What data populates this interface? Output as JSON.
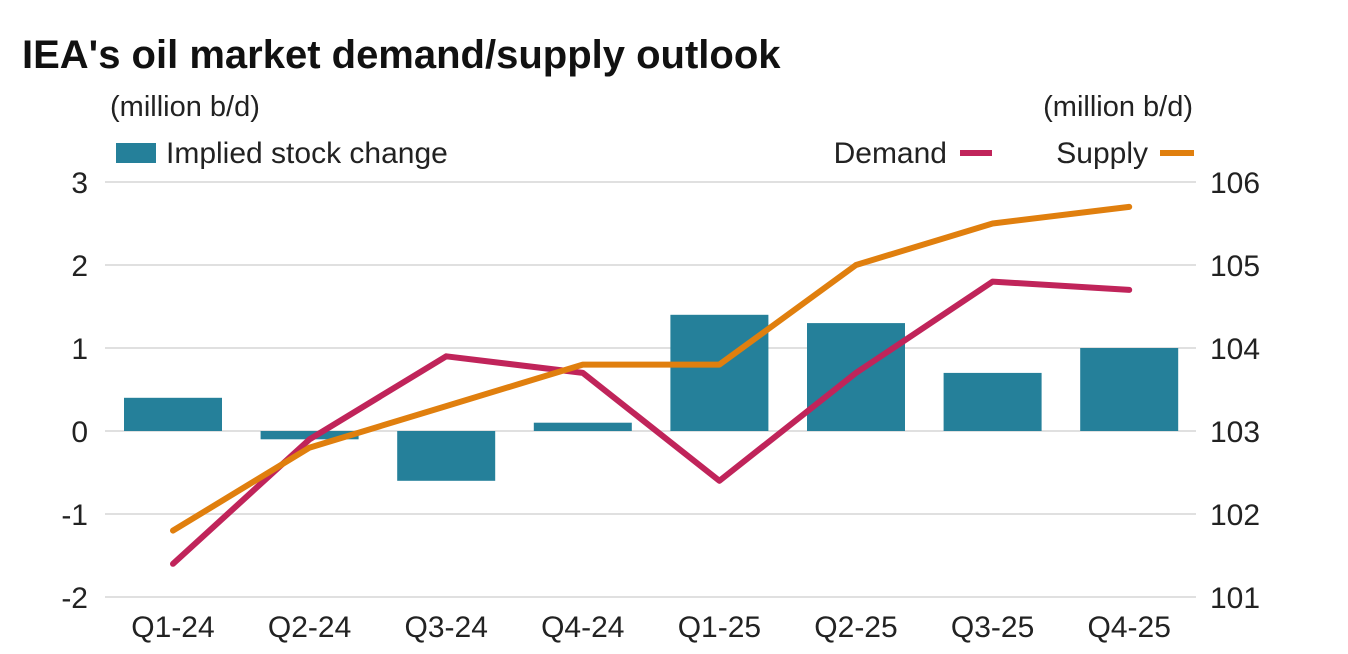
{
  "chart_data": {
    "type": "bar+line",
    "title": "IEA's oil market demand/supply outlook",
    "left_unit": "(million b/d)",
    "right_unit": "(million b/d)",
    "categories": [
      "Q1-24",
      "Q2-24",
      "Q3-24",
      "Q4-24",
      "Q1-25",
      "Q2-25",
      "Q3-25",
      "Q4-25"
    ],
    "left_axis": {
      "ylim": [
        -2,
        3
      ],
      "ticks": [
        "3",
        "2",
        "1",
        "0",
        "-1",
        "-2"
      ]
    },
    "right_axis": {
      "ylim": [
        101,
        106
      ],
      "ticks": [
        "106",
        "105",
        "104",
        "103",
        "102",
        "101"
      ]
    },
    "grid": true,
    "bars": {
      "name": "Implied stock change",
      "axis": "left",
      "color": "#25809a",
      "values": [
        0.4,
        -0.1,
        -0.6,
        0.1,
        1.4,
        1.3,
        0.7,
        1.0
      ]
    },
    "lines": [
      {
        "name": "Demand",
        "axis": "right",
        "color": "#c0245a",
        "values": [
          101.4,
          102.9,
          103.9,
          103.7,
          102.4,
          103.7,
          104.8,
          104.7
        ]
      },
      {
        "name": "Supply",
        "axis": "right",
        "color": "#e07f0e",
        "values": [
          101.8,
          102.8,
          103.3,
          103.8,
          103.8,
          105.0,
          105.5,
          105.7
        ]
      }
    ],
    "legend_placement": "top"
  }
}
